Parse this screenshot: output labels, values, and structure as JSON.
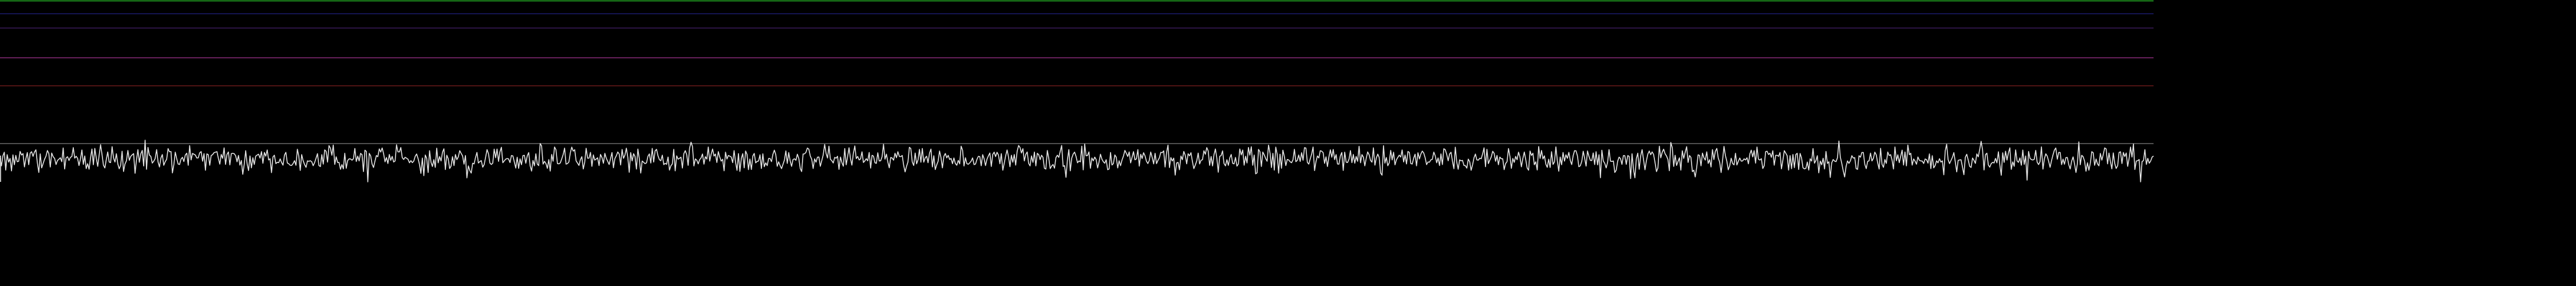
{
  "chart_data": {
    "type": "line",
    "title": "",
    "xlabel": "",
    "ylabel": "",
    "grid": false,
    "background": "#000000",
    "reference_lines": [
      {
        "color": "#1e8f1e"
      },
      {
        "color": "#1c1c6e"
      },
      {
        "color": "#3a1a5a"
      },
      {
        "color": "#8a2a7a"
      },
      {
        "color": "#6a1a1a"
      },
      {
        "color": "#6a6a6a"
      }
    ],
    "trace": {
      "color": "#e6e6e6",
      "mean": 0.5,
      "amplitude": 0.5,
      "samples": 1500,
      "seed": 7
    }
  }
}
